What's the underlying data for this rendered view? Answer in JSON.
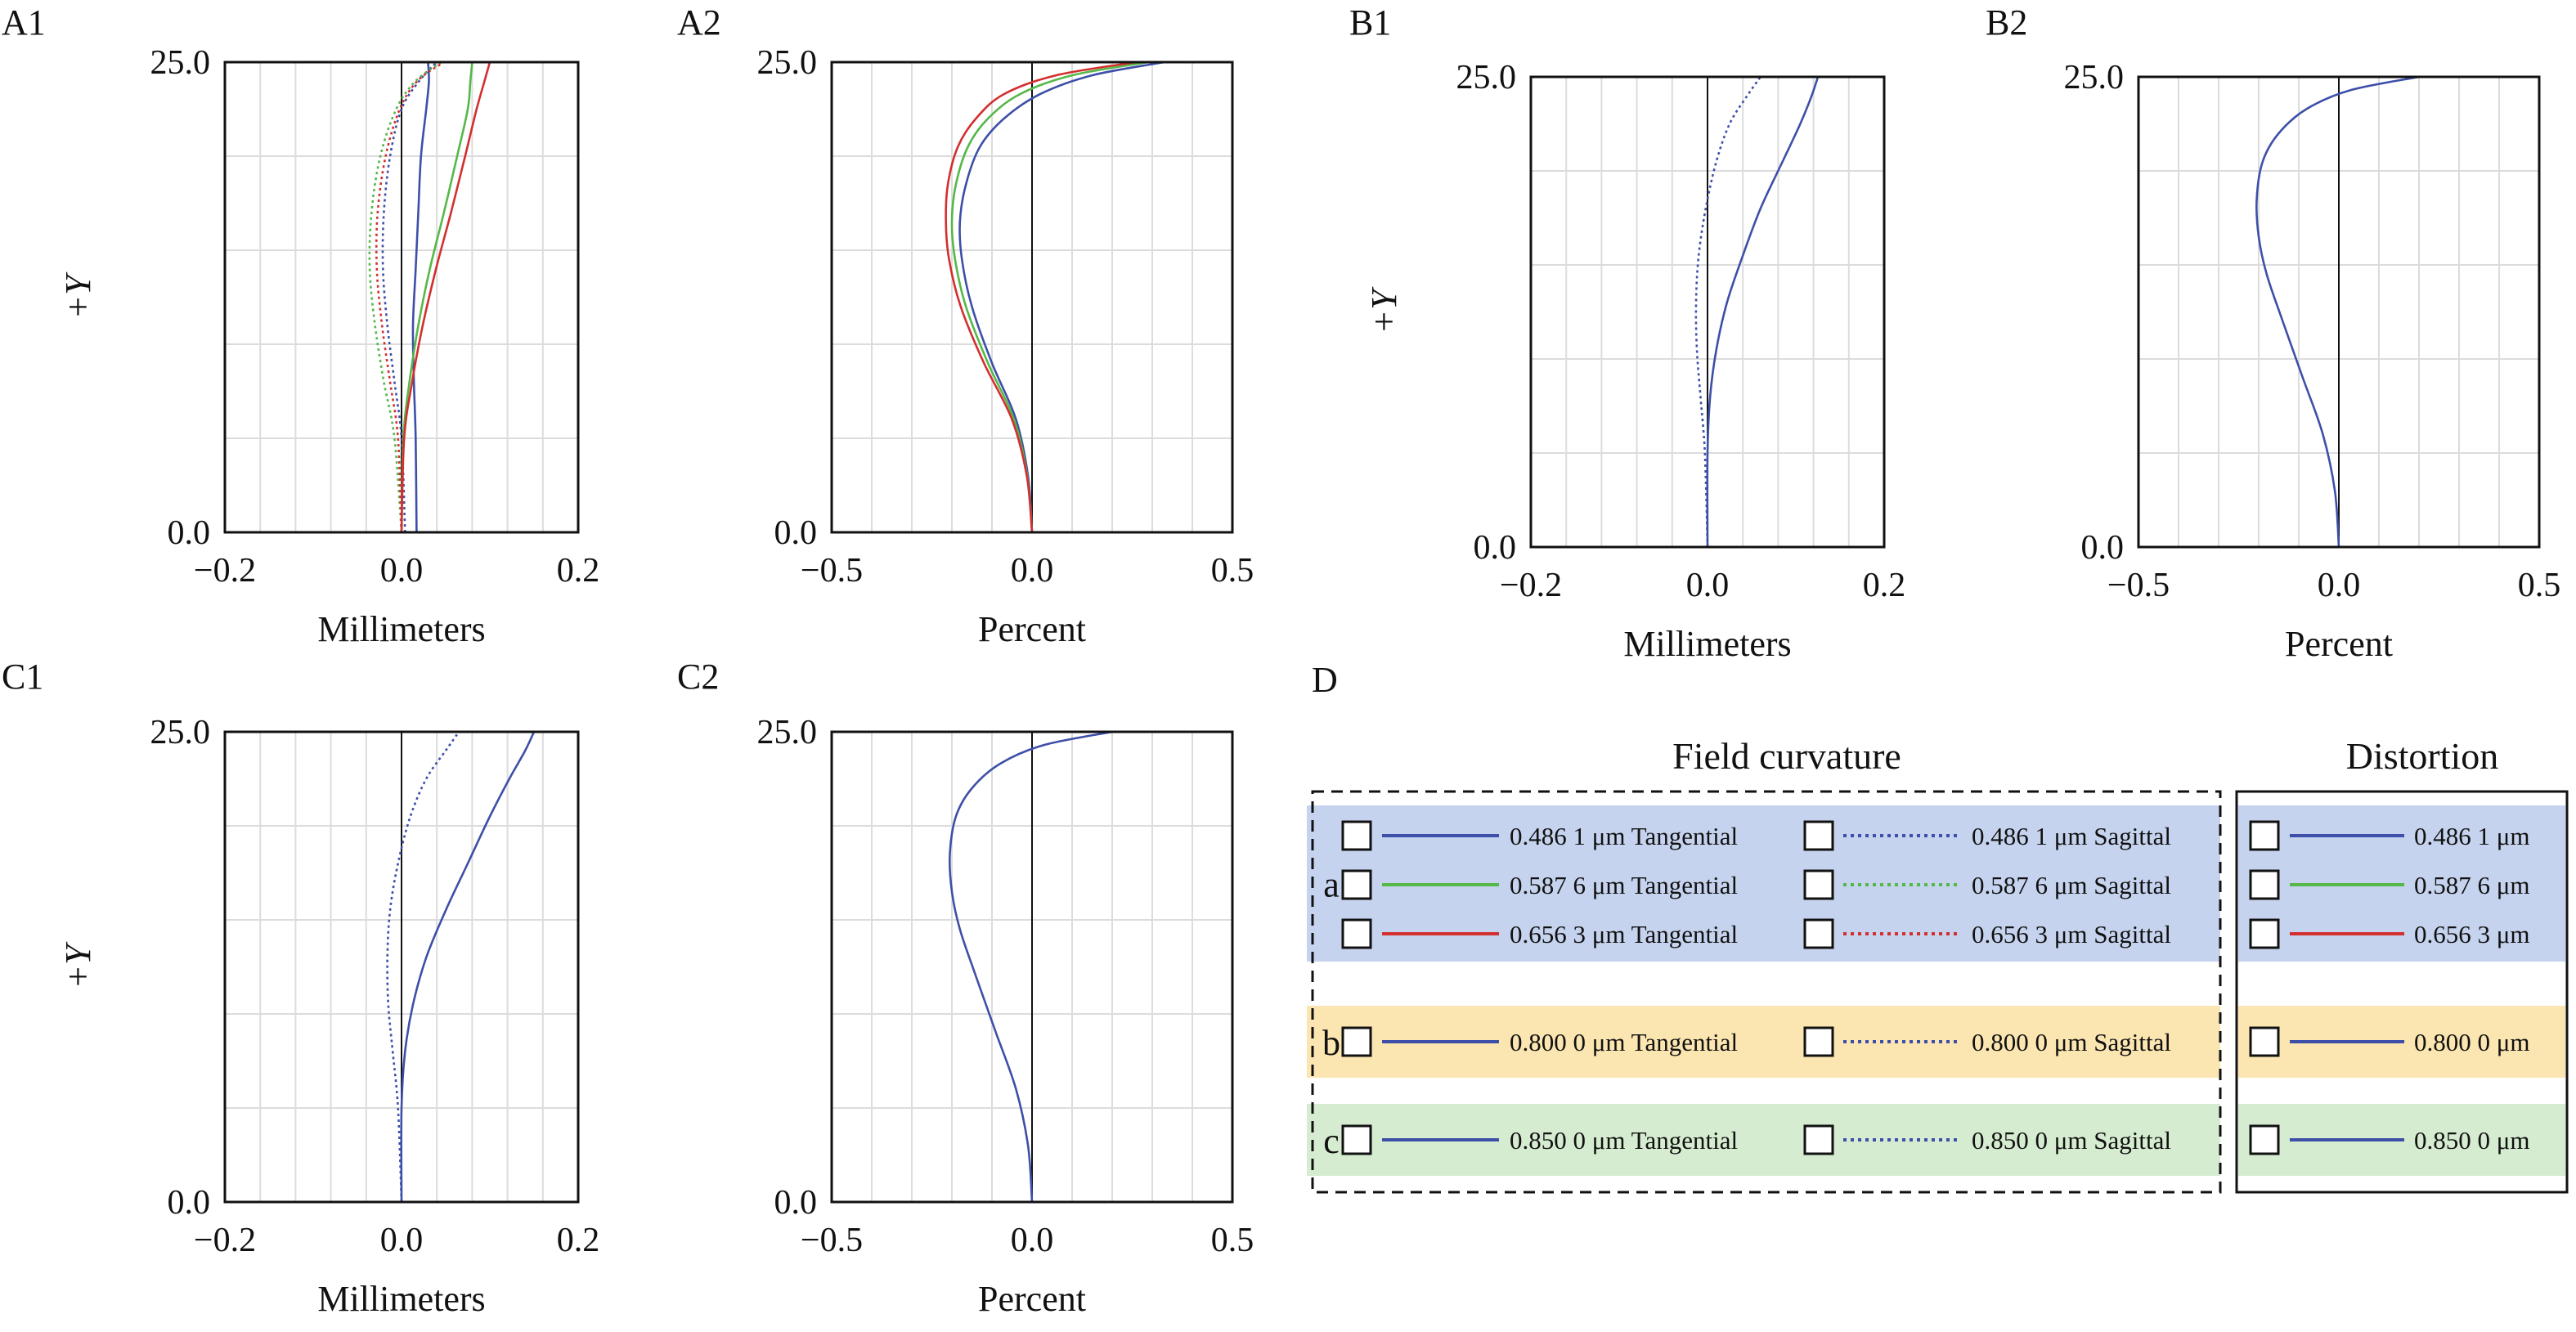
{
  "chart_data": [
    {
      "id": "A1",
      "panel_label": "A1",
      "type": "line",
      "xlabel": "Millimeters",
      "ylabel": "+Y",
      "xlim": [
        -0.2,
        0.2
      ],
      "ylim": [
        0,
        25
      ],
      "xticks": [
        -0.2,
        0.0,
        0.2
      ],
      "xtick_labels": [
        "−0.2",
        "0.0",
        "0.2"
      ],
      "yticks": [
        0,
        25
      ],
      "ytick_labels": [
        "0.0",
        "25.0"
      ],
      "xgrid_step": 0.04,
      "ygrid_step": 5,
      "series": [
        {
          "wavelength": "0.486 1 μm",
          "kind": "Tangential",
          "color": "#3d4fa8",
          "dashed": false,
          "x": [
            0.017,
            0.016,
            0.014,
            0.013,
            0.016,
            0.019,
            0.022,
            0.028,
            0.031,
            0.03
          ],
          "y": [
            0,
            5,
            8,
            11,
            14,
            17,
            20,
            22.5,
            24,
            25
          ]
        },
        {
          "wavelength": "0.486 1 μm",
          "kind": "Sagittal",
          "color": "#3d4fa8",
          "dashed": true,
          "x": [
            0.004,
            0.0,
            -0.008,
            -0.016,
            -0.021,
            -0.02,
            -0.013,
            0.0,
            0.02,
            0.04
          ],
          "y": [
            0,
            5,
            8,
            11,
            14,
            17,
            20,
            22.5,
            24,
            25
          ]
        },
        {
          "wavelength": "0.587 6 μm",
          "kind": "Tangential",
          "color": "#55b848",
          "dashed": false,
          "x": [
            0.0,
            0.002,
            0.009,
            0.019,
            0.032,
            0.048,
            0.063,
            0.075,
            0.078,
            0.08
          ],
          "y": [
            0,
            5,
            8,
            11,
            14,
            17,
            20,
            22.5,
            24,
            25
          ]
        },
        {
          "wavelength": "0.587 6 μm",
          "kind": "Sagittal",
          "color": "#55b848",
          "dashed": true,
          "x": [
            0.0,
            -0.008,
            -0.02,
            -0.03,
            -0.036,
            -0.034,
            -0.024,
            -0.006,
            0.016,
            0.045
          ],
          "y": [
            0,
            5,
            8,
            11,
            14,
            17,
            20,
            22.5,
            24,
            25
          ]
        },
        {
          "wavelength": "0.656 3 μm",
          "kind": "Tangential",
          "color": "#d32f2f",
          "dashed": false,
          "x": [
            0.0,
            0.003,
            0.012,
            0.024,
            0.039,
            0.056,
            0.072,
            0.085,
            0.094,
            0.1
          ],
          "y": [
            0,
            5,
            8,
            11,
            14,
            17,
            20,
            22.5,
            24,
            25
          ]
        },
        {
          "wavelength": "0.656 3 μm",
          "kind": "Sagittal",
          "color": "#d32f2f",
          "dashed": true,
          "x": [
            0.0,
            -0.004,
            -0.013,
            -0.022,
            -0.028,
            -0.027,
            -0.018,
            -0.002,
            0.018,
            0.048
          ],
          "y": [
            0,
            5,
            8,
            11,
            14,
            17,
            20,
            22.5,
            24,
            25
          ]
        }
      ]
    },
    {
      "id": "A2",
      "panel_label": "A2",
      "type": "line",
      "xlabel": "Percent",
      "ylabel": "",
      "xlim": [
        -0.5,
        0.5
      ],
      "ylim": [
        0,
        25
      ],
      "xticks": [
        -0.5,
        0.0,
        0.5
      ],
      "xtick_labels": [
        "−0.5",
        "0.0",
        "0.5"
      ],
      "yticks": [
        0,
        25
      ],
      "ytick_labels": [
        "0.0",
        "25.0"
      ],
      "xgrid_step": 0.1,
      "ygrid_step": 5,
      "series": [
        {
          "wavelength": "0.486 1 μm",
          "kind": "Distortion",
          "color": "#3d4fa8",
          "dashed": false,
          "x": [
            0.0,
            -0.01,
            -0.04,
            -0.1,
            -0.15,
            -0.175,
            -0.18,
            -0.165,
            -0.13,
            -0.07,
            0.02,
            0.15,
            0.33
          ],
          "y": [
            0,
            3,
            6,
            9,
            12,
            14.5,
            16.5,
            18.5,
            20.5,
            22,
            23.3,
            24.3,
            25
          ]
        },
        {
          "wavelength": "0.587 6 μm",
          "kind": "Distortion",
          "color": "#55b848",
          "dashed": false,
          "x": [
            0.0,
            -0.012,
            -0.045,
            -0.11,
            -0.165,
            -0.192,
            -0.2,
            -0.19,
            -0.16,
            -0.11,
            -0.03,
            0.1,
            0.29
          ],
          "y": [
            0,
            3,
            6,
            9,
            12,
            14.5,
            16.5,
            18.5,
            20.5,
            22,
            23.3,
            24.3,
            25
          ]
        },
        {
          "wavelength": "0.656 3 μm",
          "kind": "Distortion",
          "color": "#d32f2f",
          "dashed": false,
          "x": [
            0.0,
            -0.013,
            -0.05,
            -0.12,
            -0.178,
            -0.207,
            -0.215,
            -0.21,
            -0.185,
            -0.14,
            -0.07,
            0.06,
            0.26
          ],
          "y": [
            0,
            3,
            6,
            9,
            12,
            14.5,
            16.5,
            18.5,
            20.5,
            22,
            23.3,
            24.3,
            25
          ]
        }
      ]
    },
    {
      "id": "B1",
      "panel_label": "B1",
      "type": "line",
      "xlabel": "Millimeters",
      "ylabel": "+Y",
      "xlim": [
        -0.2,
        0.2
      ],
      "ylim": [
        0,
        25
      ],
      "xticks": [
        -0.2,
        0.0,
        0.2
      ],
      "xtick_labels": [
        "−0.2",
        "0.0",
        "0.2"
      ],
      "yticks": [
        0,
        25
      ],
      "ytick_labels": [
        "0.0",
        "25.0"
      ],
      "xgrid_step": 0.04,
      "ygrid_step": 5,
      "series": [
        {
          "wavelength": "0.800 0 μm",
          "kind": "Tangential",
          "color": "#3d4fa8",
          "dashed": false,
          "x": [
            0.0,
            0.0,
            0.003,
            0.01,
            0.022,
            0.04,
            0.06,
            0.085,
            0.105,
            0.118,
            0.125
          ],
          "y": [
            0,
            5,
            8,
            10.5,
            13,
            15.5,
            18,
            20.5,
            22.5,
            24,
            25
          ]
        },
        {
          "wavelength": "0.800 0 μm",
          "kind": "Sagittal",
          "color": "#3d4fa8",
          "dashed": true,
          "x": [
            0.0,
            -0.003,
            -0.008,
            -0.012,
            -0.013,
            -0.01,
            -0.002,
            0.01,
            0.025,
            0.045,
            0.06
          ],
          "y": [
            0,
            5,
            8,
            10.5,
            13,
            15.5,
            18,
            20.5,
            22.5,
            24,
            25
          ]
        }
      ]
    },
    {
      "id": "B2",
      "panel_label": "B2",
      "type": "line",
      "xlabel": "Percent",
      "ylabel": "",
      "xlim": [
        -0.5,
        0.5
      ],
      "ylim": [
        0,
        25
      ],
      "xticks": [
        -0.5,
        0.0,
        0.5
      ],
      "xtick_labels": [
        "−0.5",
        "0.0",
        "0.5"
      ],
      "yticks": [
        0,
        25
      ],
      "ytick_labels": [
        "0.0",
        "25.0"
      ],
      "xgrid_step": 0.1,
      "ygrid_step": 5,
      "series": [
        {
          "wavelength": "0.800 0 μm",
          "kind": "Distortion",
          "color": "#3d4fa8",
          "dashed": false,
          "x": [
            0.0,
            -0.01,
            -0.04,
            -0.09,
            -0.14,
            -0.18,
            -0.2,
            -0.205,
            -0.19,
            -0.15,
            -0.08,
            0.03,
            0.2
          ],
          "y": [
            0,
            3,
            6,
            9,
            12,
            14.5,
            16.5,
            18.5,
            20.5,
            22,
            23.3,
            24.3,
            25
          ]
        }
      ]
    },
    {
      "id": "C1",
      "panel_label": "C1",
      "type": "line",
      "xlabel": "Millimeters",
      "ylabel": "+Y",
      "xlim": [
        -0.2,
        0.2
      ],
      "ylim": [
        0,
        25
      ],
      "xticks": [
        -0.2,
        0.0,
        0.2
      ],
      "xtick_labels": [
        "−0.2",
        "0.0",
        "0.2"
      ],
      "yticks": [
        0,
        25
      ],
      "ytick_labels": [
        "0.0",
        "25.0"
      ],
      "xgrid_step": 0.04,
      "ygrid_step": 5,
      "series": [
        {
          "wavelength": "0.850 0 μm",
          "kind": "Tangential",
          "color": "#3d4fa8",
          "dashed": false,
          "x": [
            0.0,
            0.0,
            0.004,
            0.013,
            0.028,
            0.05,
            0.075,
            0.1,
            0.122,
            0.14,
            0.15
          ],
          "y": [
            0,
            5,
            8,
            10.5,
            13,
            15.5,
            18,
            20.5,
            22.5,
            24,
            25
          ]
        },
        {
          "wavelength": "0.850 0 μm",
          "kind": "Sagittal",
          "color": "#3d4fa8",
          "dashed": true,
          "x": [
            0.0,
            -0.004,
            -0.01,
            -0.015,
            -0.016,
            -0.013,
            -0.004,
            0.01,
            0.028,
            0.05,
            0.065
          ],
          "y": [
            0,
            5,
            8,
            10.5,
            13,
            15.5,
            18,
            20.5,
            22.5,
            24,
            25
          ]
        }
      ]
    },
    {
      "id": "C2",
      "panel_label": "C2",
      "type": "line",
      "xlabel": "Percent",
      "ylabel": "",
      "xlim": [
        -0.5,
        0.5
      ],
      "ylim": [
        0,
        25
      ],
      "xticks": [
        -0.5,
        0.0,
        0.5
      ],
      "xtick_labels": [
        "−0.5",
        "0.0",
        "0.5"
      ],
      "yticks": [
        0,
        25
      ],
      "ytick_labels": [
        "0.0",
        "25.0"
      ],
      "xgrid_step": 0.1,
      "ygrid_step": 5,
      "series": [
        {
          "wavelength": "0.850 0 μm",
          "kind": "Distortion",
          "color": "#3d4fa8",
          "dashed": false,
          "x": [
            0.0,
            -0.01,
            -0.04,
            -0.09,
            -0.14,
            -0.18,
            -0.2,
            -0.205,
            -0.19,
            -0.15,
            -0.08,
            0.03,
            0.2
          ],
          "y": [
            0,
            3,
            6,
            9,
            12,
            14.5,
            16.5,
            18.5,
            20.5,
            22,
            23.3,
            24.3,
            25
          ]
        }
      ]
    }
  ],
  "legend": {
    "panel_label": "D",
    "field_curvature_title": "Field curvature",
    "distortion_title": "Distortion",
    "groups": [
      {
        "label": "a",
        "band_color": "#c6d3ee",
        "rows": [
          {
            "color": "#3d4fa8",
            "tangential": "0.486 1 μm Tangential",
            "sagittal": "0.486 1 μm Sagittal",
            "distortion": "0.486 1 μm"
          },
          {
            "color": "#55b848",
            "tangential": "0.587 6 μm Tangential",
            "sagittal": "0.587 6 μm Sagittal",
            "distortion": "0.587 6 μm"
          },
          {
            "color": "#d32f2f",
            "tangential": "0.656 3 μm Tangential",
            "sagittal": "0.656 3 μm Sagittal",
            "distortion": "0.656 3 μm"
          }
        ]
      },
      {
        "label": "b",
        "band_color": "#fbe5b0",
        "rows": [
          {
            "color": "#3d4fa8",
            "tangential": "0.800 0 μm Tangential",
            "sagittal": "0.800 0 μm Sagittal",
            "distortion": "0.800 0 μm"
          }
        ]
      },
      {
        "label": "c",
        "band_color": "#d6ecd0",
        "rows": [
          {
            "color": "#3d4fa8",
            "tangential": "0.850 0 μm Tangential",
            "sagittal": "0.850 0 μm Sagittal",
            "distortion": "0.850 0 μm"
          }
        ]
      }
    ]
  }
}
